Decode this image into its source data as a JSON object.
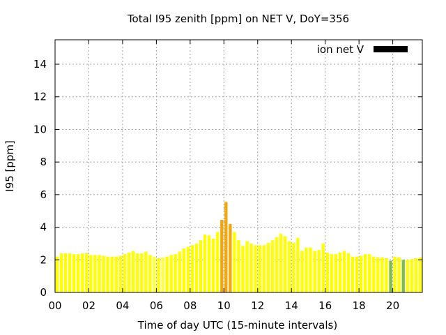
{
  "chart_data": {
    "type": "bar",
    "title": "Total I95 zenith [ppm] on NET V, DoY=356",
    "xlabel": "Time of day UTC (15-minute intervals)",
    "ylabel": "I95 [ppm]",
    "xlim": [
      0,
      21.75
    ],
    "ylim": [
      0,
      15.5
    ],
    "xticks": [
      0,
      2,
      4,
      6,
      8,
      10,
      12,
      14,
      16,
      18,
      20
    ],
    "xtick_labels": [
      "00",
      "02",
      "04",
      "06",
      "08",
      "10",
      "12",
      "14",
      "16",
      "18",
      "20"
    ],
    "yticks": [
      0,
      2,
      4,
      6,
      8,
      10,
      12,
      14
    ],
    "ytick_labels": [
      "0",
      "2",
      "4",
      "6",
      "8",
      "10",
      "12",
      "14"
    ],
    "grid": true,
    "legend": {
      "label": "ion net V",
      "color": "#000000",
      "position": "top-right"
    },
    "bar_interval_hours": 0.25,
    "x": [
      0.0,
      0.25,
      0.5,
      0.75,
      1.0,
      1.25,
      1.5,
      1.75,
      2.0,
      2.25,
      2.5,
      2.75,
      3.0,
      3.25,
      3.5,
      3.75,
      4.0,
      4.25,
      4.5,
      4.75,
      5.0,
      5.25,
      5.5,
      5.75,
      6.0,
      6.25,
      6.5,
      6.75,
      7.0,
      7.25,
      7.5,
      7.75,
      8.0,
      8.25,
      8.5,
      8.75,
      9.0,
      9.25,
      9.5,
      9.75,
      10.0,
      10.25,
      10.5,
      10.75,
      11.0,
      11.25,
      11.5,
      11.75,
      12.0,
      12.25,
      12.5,
      12.75,
      13.0,
      13.25,
      13.5,
      13.75,
      14.0,
      14.25,
      14.5,
      14.75,
      15.0,
      15.25,
      15.5,
      15.75,
      16.0,
      16.25,
      16.5,
      16.75,
      17.0,
      17.25,
      17.5,
      17.75,
      18.0,
      18.25,
      18.5,
      18.75,
      19.0,
      19.25,
      19.5,
      19.75,
      20.0,
      20.25,
      20.5,
      20.75,
      21.0,
      21.25,
      21.5
    ],
    "values": [
      2.2,
      2.4,
      2.4,
      2.4,
      2.35,
      2.35,
      2.4,
      2.4,
      2.3,
      2.3,
      2.3,
      2.25,
      2.2,
      2.2,
      2.2,
      2.25,
      2.35,
      2.45,
      2.55,
      2.4,
      2.4,
      2.5,
      2.3,
      2.2,
      2.1,
      2.15,
      2.2,
      2.3,
      2.35,
      2.5,
      2.7,
      2.8,
      2.9,
      3.0,
      3.2,
      3.55,
      3.5,
      3.3,
      3.7,
      4.45,
      5.55,
      4.2,
      3.7,
      3.2,
      2.85,
      3.15,
      3.0,
      2.9,
      2.9,
      2.9,
      3.05,
      3.2,
      3.4,
      3.6,
      3.45,
      3.15,
      3.05,
      3.35,
      2.55,
      2.75,
      2.75,
      2.55,
      2.6,
      3.0,
      2.45,
      2.35,
      2.35,
      2.45,
      2.55,
      2.4,
      2.2,
      2.2,
      2.25,
      2.35,
      2.35,
      2.2,
      2.15,
      2.15,
      2.1,
      1.95,
      2.2,
      2.15,
      2.0,
      2.0,
      2.05,
      2.1,
      2.15
    ],
    "colors": [
      "#ffff00",
      "#ffff00",
      "#ffff00",
      "#ffff00",
      "#ffff00",
      "#ffff00",
      "#ffff00",
      "#ffff00",
      "#ffff00",
      "#ffff00",
      "#ffff00",
      "#ffff00",
      "#ffff00",
      "#ffff00",
      "#ffff00",
      "#ffff00",
      "#ffff00",
      "#ffff00",
      "#ffff00",
      "#ffff00",
      "#ffff00",
      "#ffff00",
      "#ffff00",
      "#ffff44",
      "#ffff00",
      "#ffff44",
      "#ffff00",
      "#ffff00",
      "#ffff00",
      "#ffff00",
      "#ffff00",
      "#ffff00",
      "#ffff00",
      "#ffff00",
      "#ffff00",
      "#ffff00",
      "#ffff00",
      "#ffff00",
      "#ffff00",
      "#f3a70c",
      "#f3a70c",
      "#f3a70c",
      "#ffff00",
      "#ffff00",
      "#ffff00",
      "#ffff00",
      "#ffff00",
      "#ffff00",
      "#ffff00",
      "#ffff00",
      "#ffff00",
      "#ffff00",
      "#ffff00",
      "#ffff00",
      "#ffff00",
      "#ffff00",
      "#ffff00",
      "#ffff00",
      "#ffff00",
      "#ffff00",
      "#ffff00",
      "#ffff00",
      "#ffff00",
      "#ffff00",
      "#ffff00",
      "#ffff00",
      "#ffff00",
      "#ffff00",
      "#ffff00",
      "#ffff00",
      "#ffff00",
      "#ffff00",
      "#ffff00",
      "#ffff00",
      "#ffff00",
      "#ffff00",
      "#ffff00",
      "#ffff00",
      "#ffff00",
      "#7cbd4a",
      "#ffff00",
      "#ffff00",
      "#7cbd4a",
      "#ffff00",
      "#ffff00",
      "#ffff00",
      "#ffff00"
    ]
  }
}
